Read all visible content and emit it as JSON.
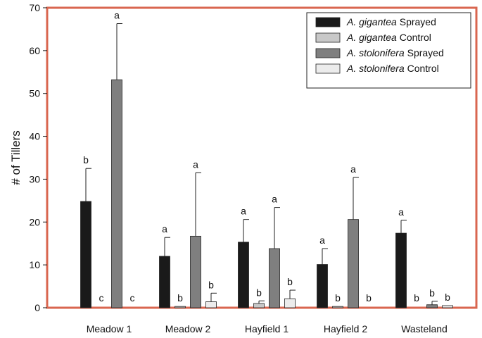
{
  "chart_data": {
    "type": "bar",
    "title": "",
    "xlabel": "",
    "ylabel": "# of Tillers",
    "ylim": [
      0,
      70
    ],
    "yticks": [
      0,
      10,
      20,
      30,
      40,
      50,
      60,
      70
    ],
    "grid": false,
    "legend_position": "top-right",
    "frame_color": "#d9664f",
    "categories": [
      "Meadow 1",
      "Meadow 2",
      "Hayfield 1",
      "Hayfield 2",
      "Wasteland"
    ],
    "series": [
      {
        "name": "A. gigantea Sprayed",
        "name_species": "A. gigantea",
        "name_treatment": "Sprayed",
        "color": "#1a1a1a",
        "values": [
          24.8,
          12.0,
          15.3,
          10.1,
          17.4
        ],
        "errors": [
          7.7,
          4.4,
          5.3,
          3.7,
          3.0
        ],
        "letters": [
          "b",
          "a",
          "a",
          "a",
          "a"
        ]
      },
      {
        "name": "A. gigantea Control",
        "name_species": "A. gigantea",
        "name_treatment": "Control",
        "color": "#c8c8c8",
        "values": [
          0,
          0.3,
          1.0,
          0.3,
          0
        ],
        "errors": [
          0,
          0,
          0.6,
          0,
          0
        ],
        "letters": [
          "c",
          "b",
          "b",
          "b",
          "b"
        ]
      },
      {
        "name": "A. stolonifera Sprayed",
        "name_species": "A. stolonifera",
        "name_treatment": "Sprayed",
        "color": "#7f7f7f",
        "values": [
          53.2,
          16.7,
          13.8,
          20.6,
          0.7
        ],
        "errors": [
          13.1,
          14.8,
          9.6,
          9.8,
          0.8
        ],
        "letters": [
          "a",
          "a",
          "a",
          "a",
          "b"
        ]
      },
      {
        "name": "A. stolonifera Control",
        "name_species": "A. stolonifera",
        "name_treatment": "Control",
        "color": "#ececec",
        "values": [
          0,
          1.4,
          2.1,
          0,
          0.5
        ],
        "errors": [
          0,
          2.0,
          2.0,
          0,
          0
        ],
        "letters": [
          "c",
          "b",
          "b",
          "b",
          "b"
        ]
      }
    ]
  }
}
